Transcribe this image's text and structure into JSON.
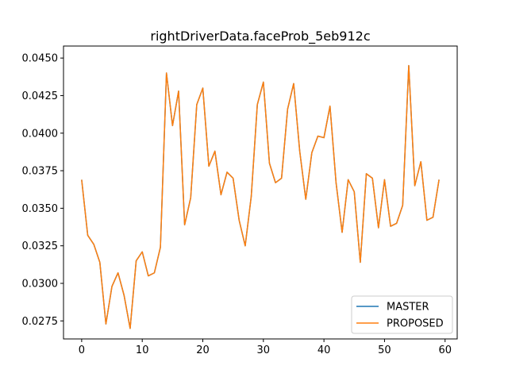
{
  "chart_data": {
    "type": "line",
    "title": "rightDriverData.faceProb_5eb912c",
    "xlabel": "",
    "ylabel": "",
    "xlim": [
      -3,
      62
    ],
    "ylim": [
      0.0263,
      0.0458
    ],
    "xticks": [
      0,
      10,
      20,
      30,
      40,
      50,
      60
    ],
    "xtick_labels": [
      "0",
      "10",
      "20",
      "30",
      "40",
      "50",
      "60"
    ],
    "yticks": [
      0.0275,
      0.03,
      0.0325,
      0.035,
      0.0375,
      0.04,
      0.0425,
      0.045
    ],
    "ytick_labels": [
      "0.0275",
      "0.0300",
      "0.0325",
      "0.0350",
      "0.0375",
      "0.0400",
      "0.0425",
      "0.0450"
    ],
    "grid": false,
    "legend_position": "lower right",
    "x": [
      0,
      1,
      2,
      3,
      4,
      5,
      6,
      7,
      8,
      9,
      10,
      11,
      12,
      13,
      14,
      15,
      16,
      17,
      18,
      19,
      20,
      21,
      22,
      23,
      24,
      25,
      26,
      27,
      28,
      29,
      30,
      31,
      32,
      33,
      34,
      35,
      36,
      37,
      38,
      39,
      40,
      41,
      42,
      43,
      44,
      45,
      46,
      47,
      48,
      49,
      50,
      51,
      52,
      53,
      54,
      55,
      56,
      57,
      58,
      59
    ],
    "series": [
      {
        "name": "MASTER",
        "color": "#1f77b4",
        "values": [
          0.0369,
          0.0332,
          0.0326,
          0.0314,
          0.0273,
          0.0298,
          0.0307,
          0.0292,
          0.027,
          0.0315,
          0.0321,
          0.0305,
          0.0307,
          0.0324,
          0.044,
          0.0405,
          0.0428,
          0.0339,
          0.0357,
          0.0419,
          0.043,
          0.0378,
          0.0388,
          0.0359,
          0.0374,
          0.037,
          0.0342,
          0.0325,
          0.0358,
          0.0419,
          0.0434,
          0.038,
          0.0367,
          0.037,
          0.0416,
          0.0433,
          0.0388,
          0.0356,
          0.0387,
          0.0398,
          0.0397,
          0.0418,
          0.0367,
          0.0334,
          0.0369,
          0.0361,
          0.0314,
          0.0373,
          0.037,
          0.0337,
          0.0369,
          0.0338,
          0.034,
          0.0352,
          0.0445,
          0.0365,
          0.0381,
          0.0342,
          0.0344,
          0.0369
        ]
      },
      {
        "name": "PROPOSED",
        "color": "#ff7f0e",
        "values": [
          0.0369,
          0.0332,
          0.0326,
          0.0314,
          0.0273,
          0.0298,
          0.0307,
          0.0292,
          0.027,
          0.0315,
          0.0321,
          0.0305,
          0.0307,
          0.0324,
          0.044,
          0.0405,
          0.0428,
          0.0339,
          0.0357,
          0.0419,
          0.043,
          0.0378,
          0.0388,
          0.0359,
          0.0374,
          0.037,
          0.0342,
          0.0325,
          0.0358,
          0.0419,
          0.0434,
          0.038,
          0.0367,
          0.037,
          0.0416,
          0.0433,
          0.0388,
          0.0356,
          0.0387,
          0.0398,
          0.0397,
          0.0418,
          0.0367,
          0.0334,
          0.0369,
          0.0361,
          0.0314,
          0.0373,
          0.037,
          0.0337,
          0.0369,
          0.0338,
          0.034,
          0.0352,
          0.0445,
          0.0365,
          0.0381,
          0.0342,
          0.0344,
          0.0369
        ]
      }
    ]
  }
}
